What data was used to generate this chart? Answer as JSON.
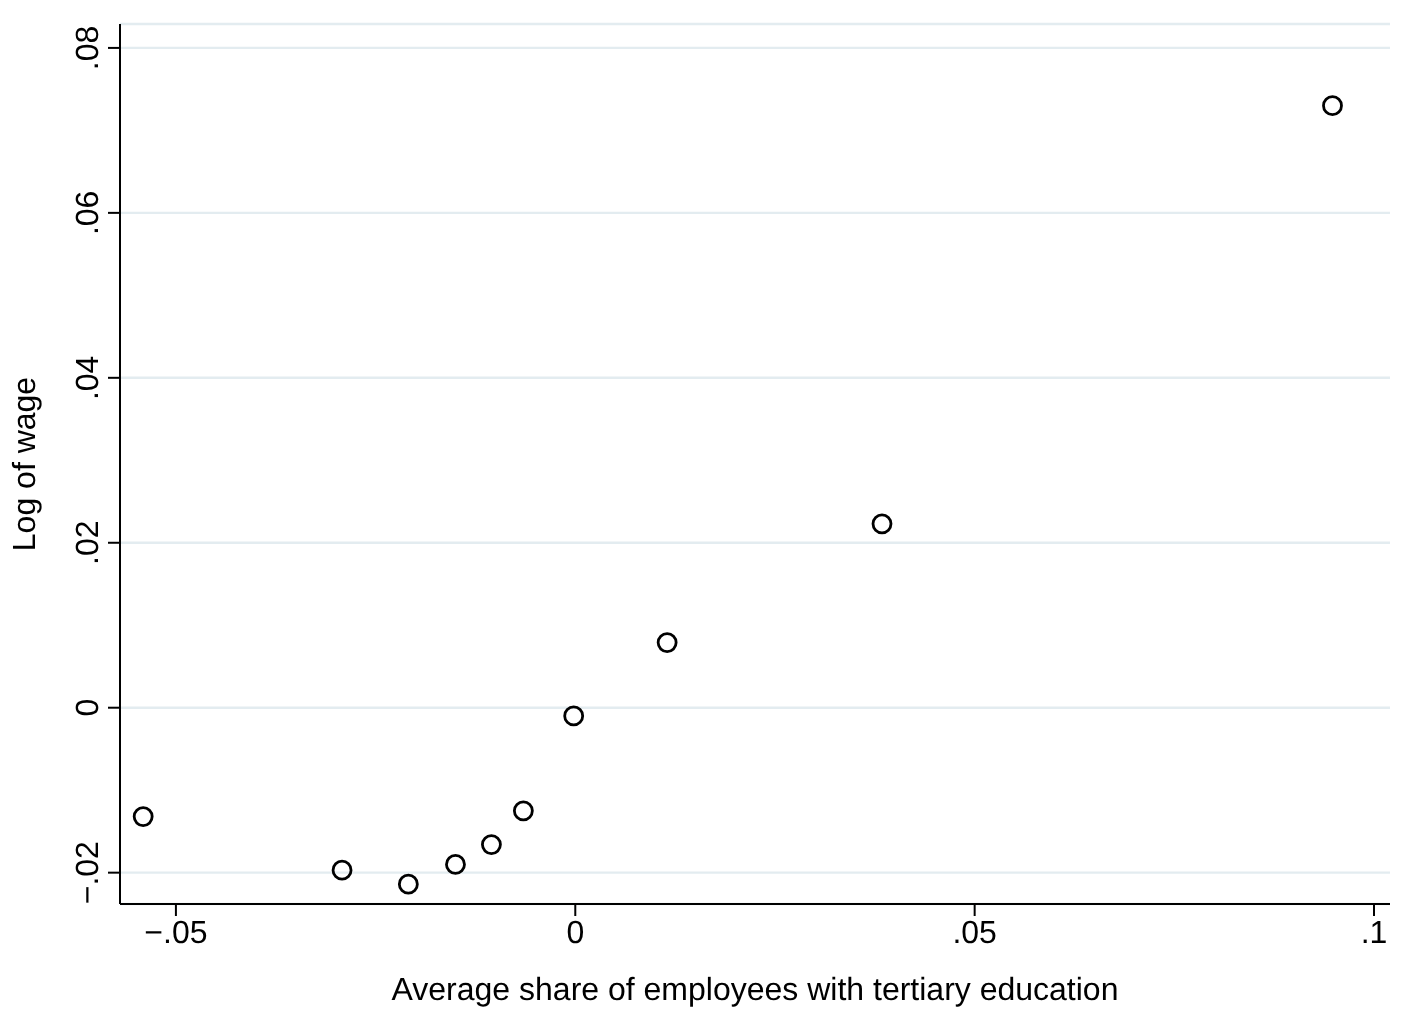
{
  "chart_data": {
    "type": "scatter",
    "xlabel": "Average share of employees with tertiary education",
    "ylabel": "Log of wage",
    "x": [
      -0.0541,
      -0.0292,
      -0.0209,
      -0.015,
      -0.0105,
      -0.0065,
      -0.0002,
      0.0115,
      0.0384,
      0.0948
    ],
    "series": [
      {
        "color": "#000000",
        "values": [
          -0.0132,
          -0.0197,
          -0.0214,
          -0.019,
          -0.0166,
          -0.0125,
          -0.001,
          0.0079,
          0.0223,
          0.073
        ]
      }
    ],
    "xlim": [
      -0.057,
      0.102
    ],
    "ylim": [
      -0.0238,
      0.0829
    ],
    "xticks": [
      {
        "value": -0.05,
        "label": "−.05"
      },
      0,
      {
        "value": 0.05,
        "label": ".05"
      },
      {
        "value": 0.1,
        "label": ".1"
      }
    ],
    "yticks": [
      {
        "value": -0.02,
        "label": "−.02"
      },
      0,
      {
        "value": 0.02,
        "label": ".02"
      },
      {
        "value": 0.04,
        "label": ".04"
      },
      {
        "value": 0.06,
        "label": ".06"
      },
      {
        "value": 0.08,
        "label": ".08"
      }
    ],
    "grid": "y",
    "marker": "circle",
    "legend": false
  }
}
